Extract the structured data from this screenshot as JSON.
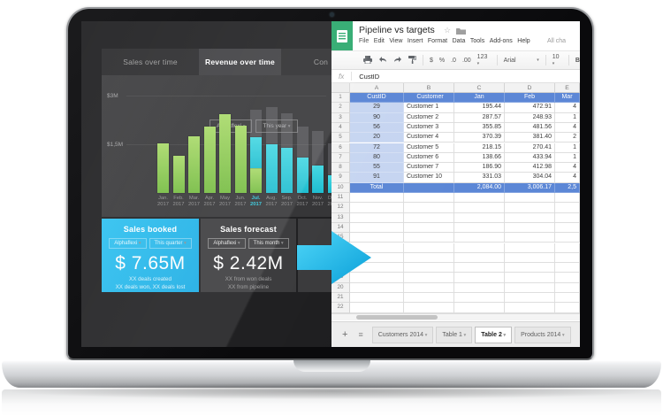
{
  "dashboard": {
    "tabs": [
      {
        "label": "Sales over time",
        "active": false
      },
      {
        "label": "Revenue over time",
        "active": true
      },
      {
        "label": "Con",
        "active": false
      }
    ],
    "filters": {
      "company": "Alphaflexi",
      "period": "This year"
    },
    "chart_data": {
      "type": "bar",
      "title": "Revenue over time",
      "x": [
        "Jan. 2017",
        "Feb. 2017",
        "Mar. 2017",
        "Apr. 2017",
        "May 2017",
        "Jun. 2017",
        "Jul. 2017",
        "Aug. 2017",
        "Sep. 2017",
        "Oct. 2017",
        "Nov. 2017",
        "Dec. 2017"
      ],
      "yticks": [
        {
          "label": "$3M",
          "value": 3
        },
        {
          "label": "$1,5M",
          "value": 1.5
        }
      ],
      "ylim": [
        0,
        3.2
      ],
      "unit": "$M",
      "highlighted_x": "Jul. 2017",
      "series": [
        {
          "name": "actual-to-date-green",
          "values": [
            1.52,
            1.15,
            1.75,
            2.05,
            2.43,
            2.07,
            0.76,
            0,
            0,
            0,
            0,
            0
          ]
        },
        {
          "name": "forecast-cyan",
          "values": [
            0,
            0,
            0,
            0,
            0,
            0,
            0.96,
            1.5,
            1.39,
            1.09,
            0.85,
            0.55
          ]
        },
        {
          "name": "target-gray",
          "values": [
            0,
            0,
            0,
            0,
            0,
            0,
            2.55,
            2.65,
            2.45,
            2.05,
            1.91,
            1.53
          ]
        }
      ],
      "legend": false
    },
    "panels": [
      {
        "title": "Sales booked",
        "filter1": "Alphaflexi",
        "filter2": "This quarter",
        "value": "$ 7.65M",
        "line1": "XX deals created",
        "line2": "XX deals won, XX deals lost",
        "accent": "#1fb4e9"
      },
      {
        "title": "Sales forecast",
        "filter1": "Alphaflexi",
        "filter2": "This month",
        "value": "$ 2.42M",
        "line1": "XX from won deals",
        "line2": "XX from pipeline"
      },
      {
        "title": "Cl"
      }
    ]
  },
  "sheet": {
    "title": "Pipeline vs targets",
    "star_icon": "☆",
    "menu": [
      "File",
      "Edit",
      "View",
      "Insert",
      "Format",
      "Data",
      "Tools",
      "Add-ons",
      "Help"
    ],
    "menu_status": "All cha",
    "toolbar": {
      "formats": [
        "$",
        "%",
        ".0",
        ".00",
        "123"
      ],
      "font_name": "Arial",
      "font_size": "10",
      "bold_label": "B"
    },
    "formula_bar": {
      "fx": "fx",
      "value": "CustID"
    },
    "columns": [
      "A",
      "B",
      "C",
      "D",
      "E"
    ],
    "row_count": 22,
    "table": {
      "header": [
        "CustID",
        "Customer",
        "Jan",
        "Feb",
        "Mar"
      ],
      "rows": [
        [
          "29",
          "Customer 1",
          "195.44",
          "472.91",
          "4"
        ],
        [
          "90",
          "Customer 2",
          "287.57",
          "248.93",
          "1"
        ],
        [
          "56",
          "Customer 3",
          "355.85",
          "481.56",
          "4"
        ],
        [
          "20",
          "Customer 4",
          "370.39",
          "381.40",
          "2"
        ],
        [
          "72",
          "Customer 5",
          "218.15",
          "270.41",
          "1"
        ],
        [
          "80",
          "Customer 6",
          "138.66",
          "433.94",
          "1"
        ],
        [
          "55",
          "Customer 7",
          "186.90",
          "412.98",
          "4"
        ],
        [
          "91",
          "Customer 10",
          "331.03",
          "304.04",
          "4"
        ]
      ],
      "total_row": [
        "Total",
        "",
        "2,084.00",
        "3,006.17",
        "2,5"
      ]
    },
    "sheet_tabs": [
      {
        "label": "Customers 2014",
        "active": false
      },
      {
        "label": "Table 1",
        "active": false
      },
      {
        "label": "Table 2",
        "active": true
      },
      {
        "label": "Products 2014",
        "active": false
      }
    ],
    "colors": {
      "header_fill": "#5c87d6",
      "column_a_fill": "#c6d5f1",
      "total_fill": "#5c87d6",
      "logo_green": "#23a566"
    }
  }
}
